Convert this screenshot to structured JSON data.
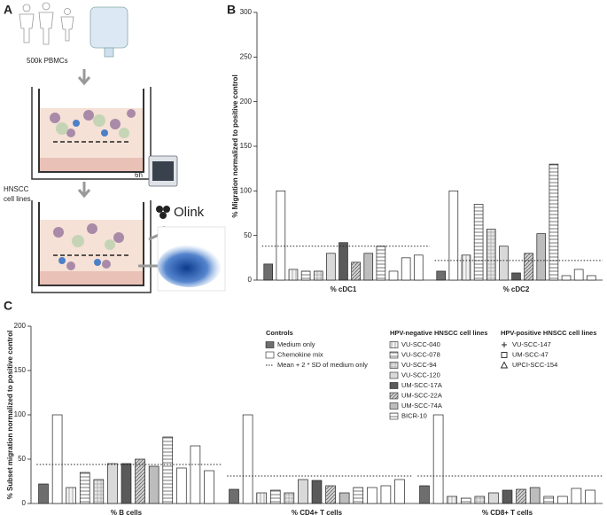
{
  "diagram": {
    "label": "A",
    "input": "500k PBMCs",
    "cells": [
      "HNSCC",
      "cell lines"
    ],
    "time": "6h",
    "readout": "Olink"
  },
  "chart_data": [
    {
      "type": "bar",
      "label": "B",
      "y_label": "% Migration normalized to positive control",
      "categories": [
        "% cDC1",
        "% cDC2"
      ],
      "ylim": [
        0,
        300
      ],
      "yticks": [
        0,
        50,
        100,
        150,
        200,
        250,
        300
      ],
      "threshold": {
        "values": [
          38,
          22
        ]
      },
      "series": [
        {
          "values": [
            18,
            10
          ]
        },
        {
          "values": [
            100,
            100
          ]
        },
        {
          "values": [
            12,
            28
          ]
        },
        {
          "values": [
            10,
            85
          ]
        },
        {
          "values": [
            10,
            57
          ]
        },
        {
          "values": [
            30,
            38
          ]
        },
        {
          "values": [
            42,
            8
          ]
        },
        {
          "values": [
            20,
            30
          ]
        },
        {
          "values": [
            30,
            52
          ]
        },
        {
          "values": [
            38,
            130
          ]
        },
        {
          "values": [
            10,
            5
          ]
        },
        {
          "values": [
            25,
            12
          ]
        },
        {
          "values": [
            28,
            5
          ]
        }
      ]
    },
    {
      "type": "bar",
      "label": "C",
      "y_label": "% Subset migration normalized to positive control",
      "categories": [
        "% B cells",
        "% CD4+ T cells",
        "% CD8+ T cells"
      ],
      "ylim": [
        0,
        200
      ],
      "yticks": [
        0,
        50,
        100,
        150,
        200
      ],
      "threshold": {
        "label": "Mean + 2 * SD of medium only",
        "values": [
          44,
          31,
          31
        ]
      },
      "series_groups": [
        {
          "title": "Controls",
          "series": [
            {
              "name": "Medium only",
              "color": "#6e6e6e",
              "pattern": "none",
              "values": [
                22,
                16,
                20
              ]
            },
            {
              "name": "Chemokine mix",
              "color": "#ffffff",
              "pattern": "none",
              "values": [
                100,
                100,
                100
              ]
            }
          ]
        },
        {
          "title": "HPV-negative HNSCC cell lines",
          "series": [
            {
              "name": "VU-SCC-040",
              "color": "#f2f2f2",
              "pattern": "vertical",
              "values": [
                18,
                12,
                8
              ]
            },
            {
              "name": "VU-SCC-078",
              "color": "#ffffff",
              "pattern": "horizontal",
              "values": [
                35,
                15,
                6
              ]
            },
            {
              "name": "VU-SCC-94",
              "color": "#e6e6e6",
              "pattern": "grid",
              "values": [
                27,
                12,
                8
              ]
            },
            {
              "name": "VU-SCC-120",
              "color": "#d9d9d9",
              "pattern": "none",
              "values": [
                45,
                27,
                12
              ]
            },
            {
              "name": "UM-SCC-17A",
              "color": "#5a5a5a",
              "pattern": "none",
              "values": [
                45,
                26,
                15
              ]
            },
            {
              "name": "UM-SCC-22A",
              "color": "#cfcfcf",
              "pattern": "diagonal",
              "values": [
                50,
                20,
                16
              ]
            },
            {
              "name": "UM-SCC-74A",
              "color": "#bdbdbd",
              "pattern": "none",
              "values": [
                42,
                12,
                18
              ]
            },
            {
              "name": "BICR-10",
              "color": "#ffffff",
              "pattern": "horizontal",
              "values": [
                75,
                18,
                8
              ]
            }
          ]
        },
        {
          "title": "HPV-positive HNSCC cell lines",
          "series": [
            {
              "name": "VU-SCC-147",
              "color": "#ffffff",
              "pattern": "none",
              "marker": "plus",
              "values": [
                40,
                18,
                8
              ]
            },
            {
              "name": "UM-SCC-47",
              "color": "#ffffff",
              "pattern": "none",
              "marker": "square",
              "values": [
                65,
                20,
                17
              ]
            },
            {
              "name": "UPCI-SCC-154",
              "color": "#ffffff",
              "pattern": "none",
              "marker": "triangle",
              "values": [
                37,
                27,
                15
              ]
            }
          ]
        }
      ]
    }
  ]
}
